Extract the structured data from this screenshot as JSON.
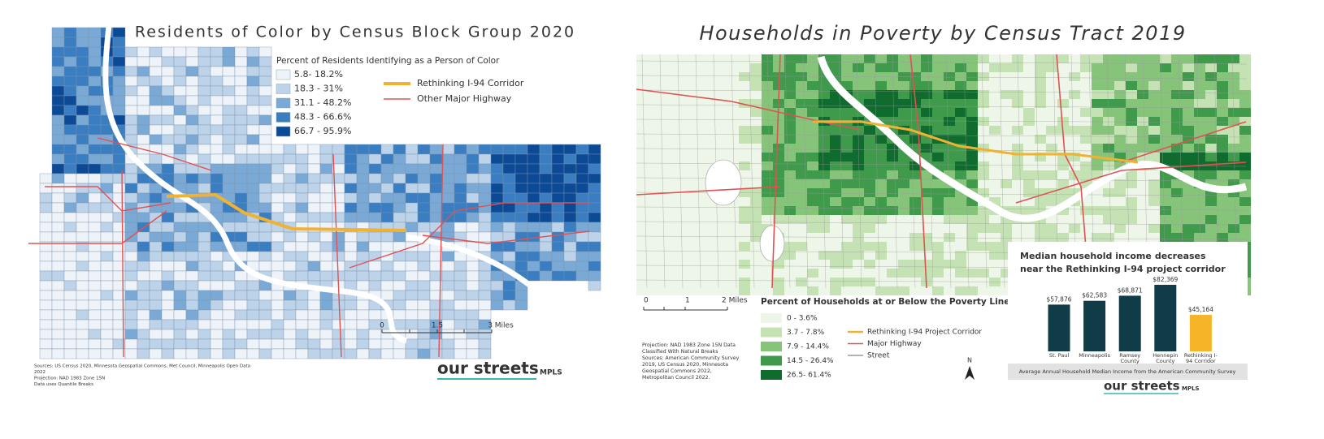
{
  "left_map": {
    "title": "Residents of Color by Census Block Group 2020",
    "legend_title": "Percent of Residents Identifying as a Person of Color",
    "legend": [
      {
        "label": "5.8- 18.2%",
        "color": "#eef3fa"
      },
      {
        "label": "18.3 - 31%",
        "color": "#bcd3ea"
      },
      {
        "label": "31.1 - 48.2%",
        "color": "#7aa9d6"
      },
      {
        "label": "48.3 - 66.6%",
        "color": "#3a7dc0"
      },
      {
        "label": "66.7 - 95.9%",
        "color": "#0c4a96"
      }
    ],
    "lines": [
      {
        "label": "Rethinking I-94 Corridor",
        "color": "#f0b232"
      },
      {
        "label": "Other Major Highway",
        "color": "#e05252"
      }
    ],
    "scale": [
      "0",
      "1.5",
      "3 Miles"
    ],
    "sources": [
      "Sources: US Census 2020, Minnesota Geospatial Commons, Met Council, Minneapolis Open Data",
      "2022",
      "Projection: NAD 1983 Zone 15N",
      "Data uses Quantile Breaks"
    ],
    "logo": {
      "text": "our streets",
      "sub": "MPLS"
    }
  },
  "right_map": {
    "title": "Households in Poverty by Census Tract 2019",
    "legend_title": "Percent of Households at or Below the Poverty Line",
    "legend": [
      {
        "label": "0 - 3.6%",
        "color": "#eef6e9"
      },
      {
        "label": "3.7 - 7.8%",
        "color": "#c4e2b4"
      },
      {
        "label": "7.9 - 14.4%",
        "color": "#86c47a"
      },
      {
        "label": "14.5 - 26.4%",
        "color": "#3f9a4c"
      },
      {
        "label": "26.5- 61.4%",
        "color": "#0f6b2e"
      }
    ],
    "lines": [
      {
        "label": "Rethinking I-94 Project Corridor",
        "color": "#f0b232"
      },
      {
        "label": "Major Highway",
        "color": "#e05252"
      },
      {
        "label": "Street",
        "color": "#9a9a9a"
      }
    ],
    "scale": [
      "0",
      "1",
      "2 Miles"
    ],
    "sources": [
      "Projection: NAD 1983 Zone 15N Data",
      "Classified With Natural Breaks",
      "Sources: American Community Survey",
      "2019, US Census 2020, Minnesota",
      "Geospatial Commons 2022,",
      "Metropolitan Council 2022."
    ],
    "north": "N",
    "logo": {
      "text": "our streets",
      "sub": "MPLS"
    }
  },
  "chart_data": {
    "type": "bar",
    "title_parts": [
      "Median household income",
      "decreases",
      "near the Rethinking I-94 project corridor"
    ],
    "categories": [
      "St. Paul",
      "Minneapolis",
      "Ramsey County",
      "Hennepin County",
      "Rethinking I-94 Corridor"
    ],
    "values": [
      57876,
      62583,
      68871,
      82369,
      45164
    ],
    "value_labels": [
      "$57,876",
      "$62,583",
      "$68,871",
      "$82,369",
      "$45,164"
    ],
    "colors": [
      "#0f3c46",
      "#0f3c46",
      "#0f3c46",
      "#0f3c46",
      "#f6b428"
    ],
    "caption": "Average Annual Household Median Income from the American Community Survey"
  }
}
